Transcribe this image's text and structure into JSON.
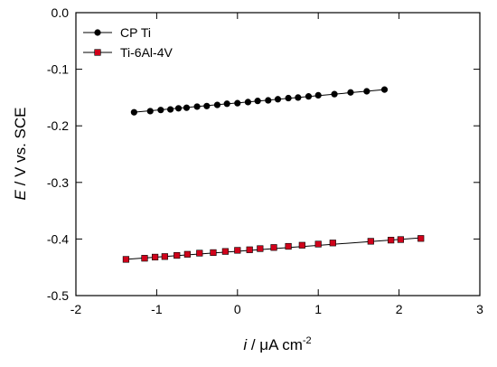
{
  "chart_data": {
    "type": "scatter",
    "xlim": [
      -2,
      3
    ],
    "ylim": [
      -0.5,
      0.0
    ],
    "x_ticks": [
      "-2",
      "-1",
      "0",
      "1",
      "2",
      "3"
    ],
    "y_ticks": [
      "0.0",
      "-0.1",
      "-0.2",
      "-0.3",
      "-0.4",
      "-0.5"
    ],
    "x_tick_values": [
      -2,
      -1,
      0,
      1,
      2,
      3
    ],
    "y_tick_values": [
      0.0,
      -0.1,
      -0.2,
      -0.3,
      -0.4,
      -0.5
    ],
    "xlabel": {
      "italic": "i",
      "rest": " / μA cm",
      "sup": "-2"
    },
    "ylabel": {
      "italic": "E",
      "rest": " / V vs. SCE"
    },
    "legend_position": "top-left",
    "grid": false,
    "series": [
      {
        "name": "CP Ti",
        "color": "#000000",
        "marker": "circle",
        "x": [
          -1.28,
          -1.08,
          -0.95,
          -0.83,
          -0.73,
          -0.63,
          -0.5,
          -0.38,
          -0.25,
          -0.13,
          0.0,
          0.13,
          0.25,
          0.38,
          0.5,
          0.63,
          0.75,
          0.88,
          1.0,
          1.2,
          1.4,
          1.6,
          1.82
        ],
        "y": [
          -0.176,
          -0.174,
          -0.172,
          -0.171,
          -0.169,
          -0.168,
          -0.166,
          -0.165,
          -0.163,
          -0.161,
          -0.16,
          -0.158,
          -0.156,
          -0.155,
          -0.153,
          -0.151,
          -0.15,
          -0.148,
          -0.146,
          -0.144,
          -0.141,
          -0.139,
          -0.136
        ],
        "fit": {
          "x": [
            -1.28,
            1.82
          ],
          "y": [
            -0.176,
            -0.136
          ]
        }
      },
      {
        "name": "Ti-6Al-4V",
        "color": "#d0021b",
        "marker": "square",
        "x": [
          -1.38,
          -1.15,
          -1.02,
          -0.9,
          -0.75,
          -0.62,
          -0.47,
          -0.3,
          -0.15,
          0.0,
          0.15,
          0.28,
          0.45,
          0.63,
          0.8,
          1.0,
          1.18,
          1.65,
          1.9,
          2.02,
          2.27
        ],
        "y": [
          -0.436,
          -0.434,
          -0.432,
          -0.431,
          -0.429,
          -0.427,
          -0.425,
          -0.424,
          -0.422,
          -0.42,
          -0.419,
          -0.417,
          -0.415,
          -0.413,
          -0.411,
          -0.409,
          -0.407,
          -0.404,
          -0.402,
          -0.401,
          -0.399
        ],
        "fit": {
          "x": [
            -1.38,
            2.27
          ],
          "y": [
            -0.436,
            -0.398
          ]
        }
      }
    ]
  }
}
